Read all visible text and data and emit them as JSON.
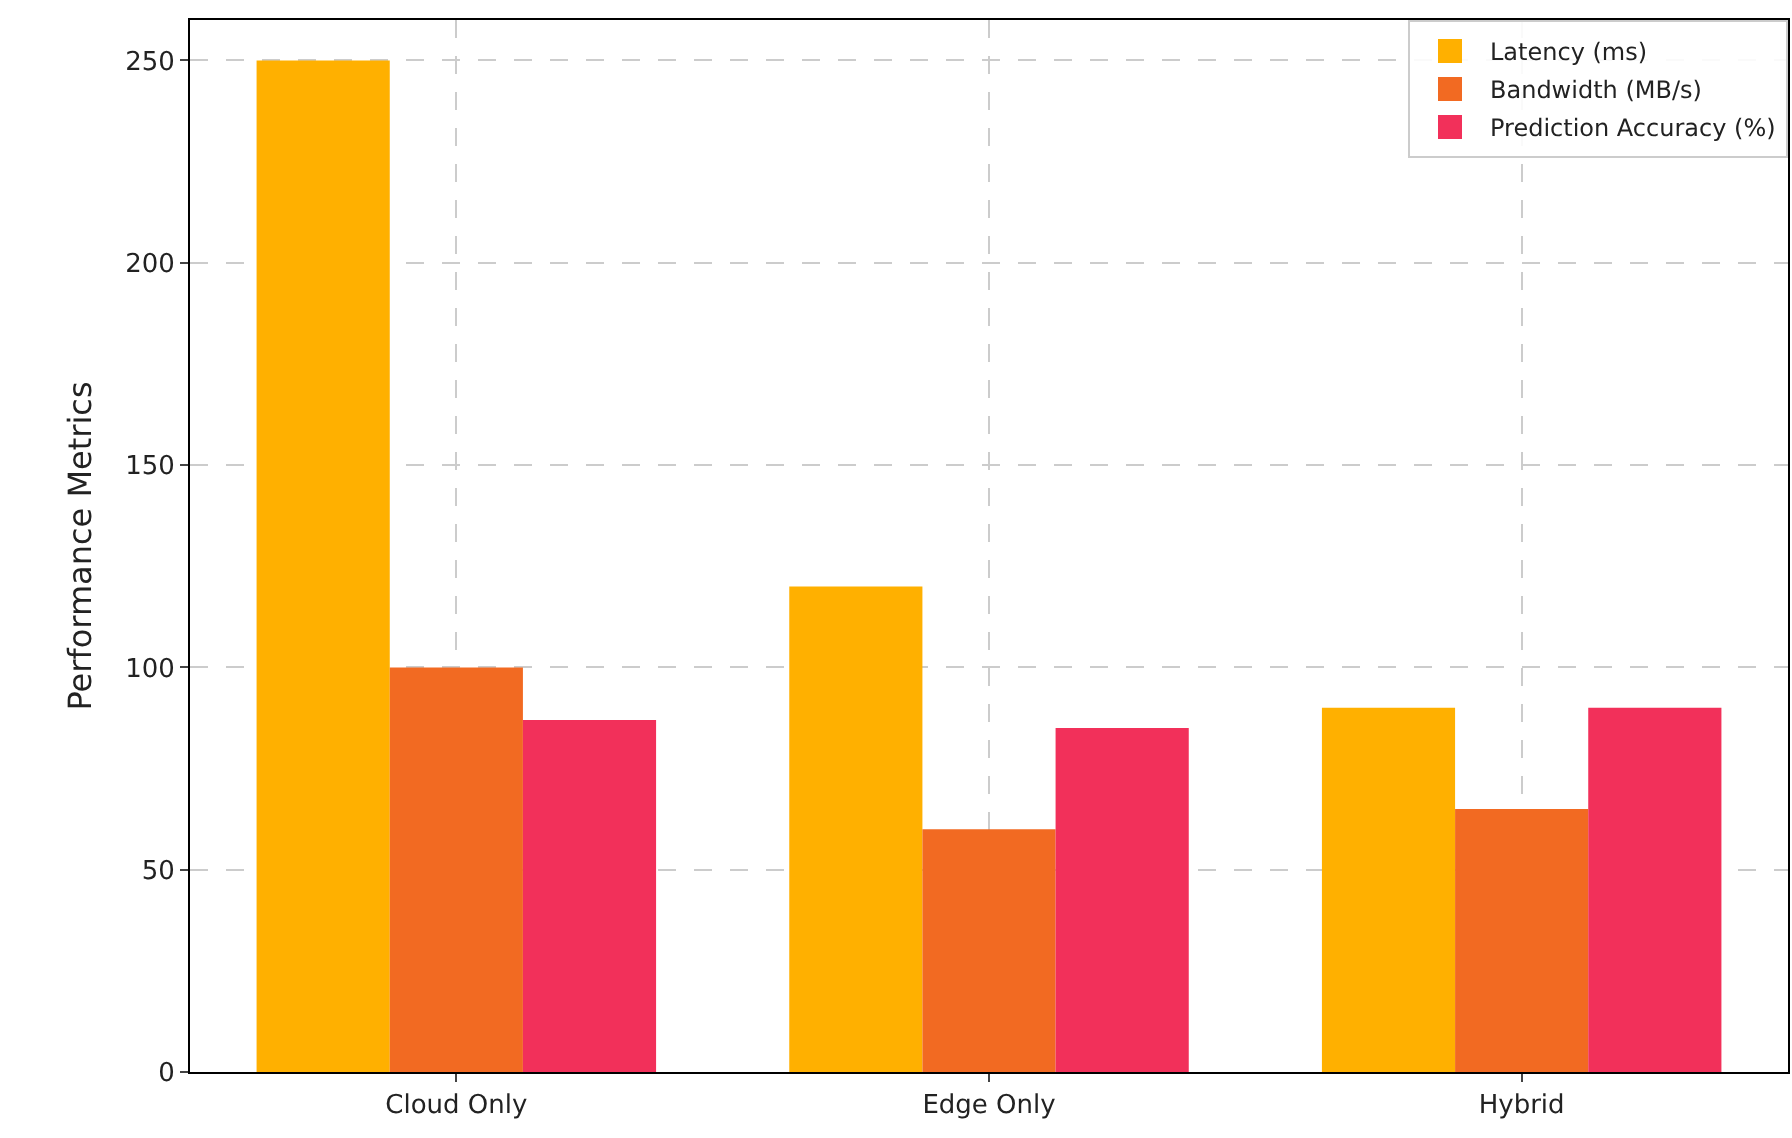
{
  "chart_data": {
    "type": "bar",
    "ylabel": "Performance Metrics",
    "categories": [
      "Cloud Only",
      "Edge Only",
      "Hybrid"
    ],
    "series": [
      {
        "name": "Latency (ms)",
        "color": "#ffb000",
        "values": [
          250,
          120,
          90
        ]
      },
      {
        "name": "Bandwidth (MB/s)",
        "color": "#f26a22",
        "values": [
          100,
          60,
          65
        ]
      },
      {
        "name": "Prediction Accuracy (%)",
        "color": "#f2305a",
        "values": [
          87,
          85,
          90
        ]
      }
    ],
    "ylim": [
      0,
      260
    ],
    "yticks": [
      0,
      50,
      100,
      150,
      200,
      250
    ],
    "grid": true,
    "legend": "top right"
  }
}
